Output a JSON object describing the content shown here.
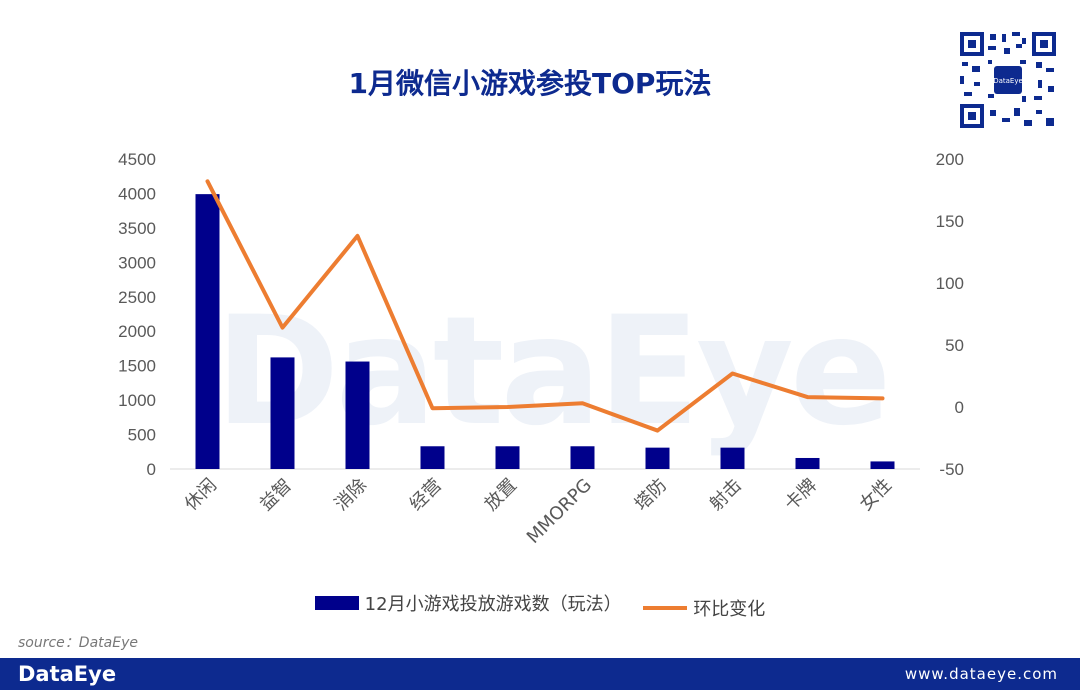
{
  "header": {
    "title": "1月微信小游戏参投TOP玩法"
  },
  "watermark": "DataEye",
  "qr": {
    "label": "DataEye"
  },
  "colors": {
    "bar": "#00008b",
    "line": "#ed7d31",
    "axis_text": "#595959",
    "title": "#0d2a8f",
    "footer": "#0d2a8f"
  },
  "chart_data": {
    "type": "bar",
    "title": "1月微信小游戏参投TOP玩法",
    "categories": [
      "休闲",
      "益智",
      "消除",
      "经营",
      "放置",
      "MMORPG",
      "塔防",
      "射击",
      "卡牌",
      "女性"
    ],
    "series": [
      {
        "name": "12月小游戏投放游戏数（玩法）",
        "type": "bar",
        "axis": "left",
        "values": [
          3990,
          1620,
          1560,
          330,
          330,
          330,
          310,
          310,
          160,
          110
        ]
      },
      {
        "name": "环比变化",
        "type": "line",
        "axis": "right",
        "values": [
          182,
          64,
          138,
          -1,
          0,
          3,
          -19,
          27,
          8,
          7
        ]
      }
    ],
    "y_left": {
      "min": 0,
      "max": 4500,
      "ticks": [
        "0",
        "500",
        "1000",
        "1500",
        "2000",
        "2500",
        "3000",
        "3500",
        "4000",
        "4500"
      ]
    },
    "y_right": {
      "min": -50,
      "max": 200,
      "ticks": [
        "-50",
        "0",
        "50",
        "100",
        "150",
        "200"
      ]
    },
    "grid": false,
    "legend_position": "bottom"
  },
  "legend": {
    "bar_label": "12月小游戏投放游戏数（玩法）",
    "line_label": "环比变化"
  },
  "footer": {
    "source": "source：DataEye",
    "brand": "DataEye",
    "url": "www.dataeye.com"
  }
}
